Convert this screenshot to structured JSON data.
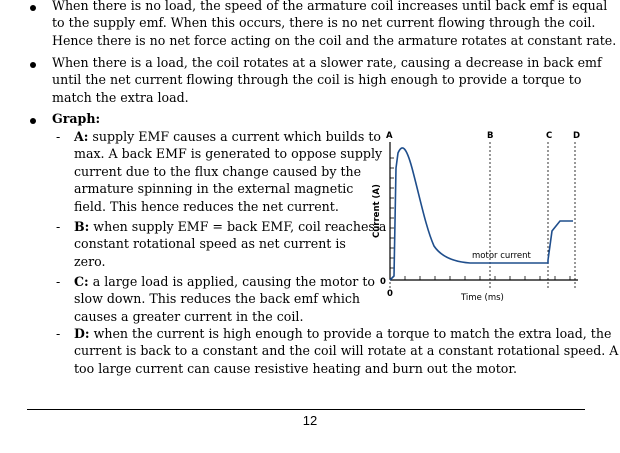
{
  "bullets": [
    {
      "lines": [
        "When there is no load, the speed of the armature coil increases until back emf is equal",
        "to the supply emf. When this occurs, there is no net current flowing through the coil.",
        "Hence there is no net force acting on the coil and the armature rotates at constant rate."
      ]
    },
    {
      "lines": [
        "When there is a load, the coil rotates at a slower rate, causing a decrease in back emf",
        "until the net current flowing through the coil is high enough to provide a torque to",
        "match the extra load."
      ]
    },
    {
      "lines": [
        "Graph:"
      ]
    }
  ],
  "sub_items": [
    {
      "label": "A:",
      "lines": [
        " supply EMF causes a current which builds to",
        "max. A back EMF is generated to oppose supply",
        "current due to the flux change caused by the",
        "armature spinning in the external magnetic",
        "field. This hence reduces the net current."
      ]
    },
    {
      "label": "B:",
      "lines": [
        " when supply EMF = back EMF, coil reaches a",
        "constant rotational speed as net current is",
        "zero."
      ]
    },
    {
      "label": "C:",
      "lines": [
        " a large load is applied, causing the motor to",
        "slow down. This reduces the back emf which",
        "causes a greater current in the coil."
      ]
    },
    {
      "label": "D:",
      "lines": [
        " when the current is high enough to provide a torque to match the extra load, the",
        "current is back to a constant and the coil will rotate at a constant rotational speed. A",
        "too large current can cause resistive heating and burn out the motor."
      ]
    }
  ],
  "graph": {
    "point_labels": [
      "A",
      "B",
      "C",
      "D"
    ],
    "y_axis_label": "Current (A)",
    "x_axis_label": "Time (ms)",
    "origin_y_label": "0",
    "origin_x_label": "0",
    "curve_label": "motor current",
    "line_color": "#1f4e8c"
  },
  "footer": {
    "page_number": "12"
  }
}
